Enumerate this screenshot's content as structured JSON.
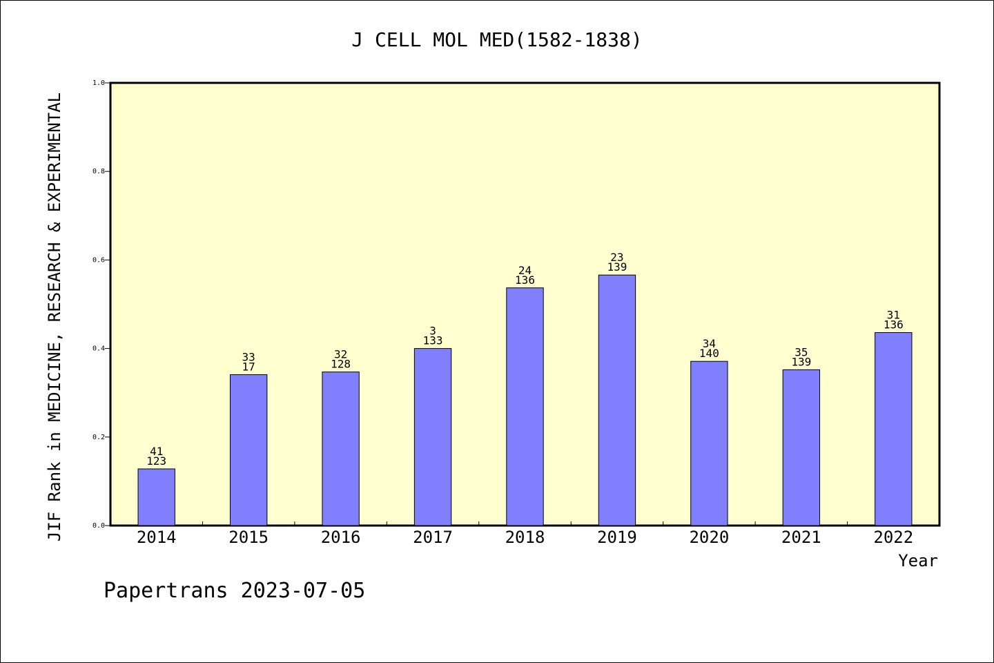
{
  "chart_data": {
    "type": "bar",
    "title": "J CELL MOL MED(1582-1838)",
    "xlabel": "Year",
    "ylabel": "JIF Rank in MEDICINE, RESEARCH & EXPERIMENTAL",
    "ylim": [
      0.0,
      1.0
    ],
    "yticks": [
      "0.0",
      "0.2",
      "0.4",
      "0.6",
      "0.8",
      "1.0"
    ],
    "categories": [
      "2014",
      "2015",
      "2016",
      "2017",
      "2018",
      "2019",
      "2020",
      "2021",
      "2022"
    ],
    "values": [
      0.128,
      0.341,
      0.347,
      0.4,
      0.537,
      0.566,
      0.371,
      0.352,
      0.436
    ],
    "labels_top": [
      "41",
      "33",
      "32",
      "3",
      "24",
      "23",
      "34",
      "35",
      "31"
    ],
    "labels_bottom": [
      "123",
      "17",
      "128",
      "133",
      "136",
      "139",
      "140",
      "139",
      "136"
    ],
    "grid": false,
    "colors": {
      "plot_background": "#ffffd0",
      "bar_fill": "#8080ff",
      "bar_stroke": "#000000",
      "axis": "#000000"
    }
  },
  "footer": {
    "text": "Papertrans 2023-07-05"
  }
}
